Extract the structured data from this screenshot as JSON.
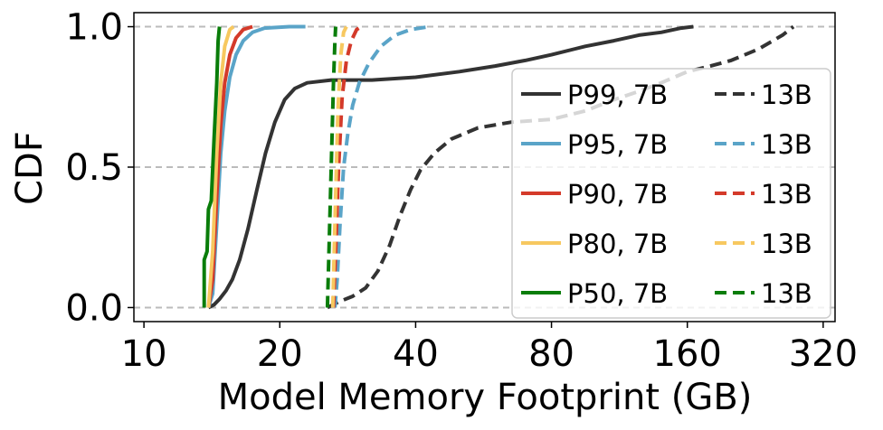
{
  "chart_data": {
    "type": "line",
    "subtype": "cdf",
    "xlabel": "Model Memory Footprint (GB)",
    "ylabel": "CDF",
    "xscale": "log2",
    "xlim": [
      9.5,
      340
    ],
    "ylim": [
      -0.05,
      1.05
    ],
    "xticks": [
      10,
      20,
      40,
      80,
      160,
      320
    ],
    "xtick_labels": [
      "10",
      "20",
      "40",
      "80",
      "160",
      "320"
    ],
    "yticks": [
      0.0,
      0.5,
      1.0
    ],
    "ytick_labels": [
      "0.0",
      "0.5",
      "1.0"
    ],
    "grid": "horizontal dashed at y ticks",
    "legend_position": "lower right",
    "legend_rows": [
      {
        "solid_label": "P99, 7B",
        "dashed_label": "13B",
        "color": "#333333"
      },
      {
        "solid_label": "P95, 7B",
        "dashed_label": "13B",
        "color": "#5aa4c8"
      },
      {
        "solid_label": "P90, 7B",
        "dashed_label": "13B",
        "color": "#d43a2a"
      },
      {
        "solid_label": "P80, 7B",
        "dashed_label": "13B",
        "color": "#f7c860"
      },
      {
        "solid_label": "P50, 7B",
        "dashed_label": "13B",
        "color": "#0a7d0a"
      }
    ],
    "series": [
      {
        "percentile": "P99",
        "model": "7B",
        "color": "#333333",
        "style": "solid",
        "points": [
          [
            13.9,
            0.0
          ],
          [
            14.3,
            0.01
          ],
          [
            14.7,
            0.03
          ],
          [
            15.2,
            0.06
          ],
          [
            15.7,
            0.1
          ],
          [
            16.3,
            0.17
          ],
          [
            17,
            0.28
          ],
          [
            17.8,
            0.42
          ],
          [
            18.6,
            0.55
          ],
          [
            19.5,
            0.66
          ],
          [
            20.5,
            0.74
          ],
          [
            21.6,
            0.78
          ],
          [
            23,
            0.8
          ],
          [
            26,
            0.81
          ],
          [
            32,
            0.81
          ],
          [
            40,
            0.82
          ],
          [
            50,
            0.84
          ],
          [
            60,
            0.86
          ],
          [
            70,
            0.88
          ],
          [
            80,
            0.9
          ],
          [
            95,
            0.93
          ],
          [
            110,
            0.95
          ],
          [
            125,
            0.97
          ],
          [
            140,
            0.98
          ],
          [
            155,
            0.995
          ],
          [
            165,
            1.0
          ]
        ]
      },
      {
        "percentile": "P99",
        "model": "13B",
        "color": "#333333",
        "style": "dashed",
        "points": [
          [
            25.5,
            0.0
          ],
          [
            27,
            0.02
          ],
          [
            29,
            0.04
          ],
          [
            31,
            0.07
          ],
          [
            33,
            0.13
          ],
          [
            35,
            0.22
          ],
          [
            37,
            0.33
          ],
          [
            39,
            0.42
          ],
          [
            41,
            0.49
          ],
          [
            44,
            0.55
          ],
          [
            48,
            0.6
          ],
          [
            55,
            0.64
          ],
          [
            65,
            0.66
          ],
          [
            80,
            0.67
          ],
          [
            95,
            0.7
          ],
          [
            110,
            0.74
          ],
          [
            125,
            0.77
          ],
          [
            140,
            0.8
          ],
          [
            160,
            0.84
          ],
          [
            180,
            0.86
          ],
          [
            200,
            0.88
          ],
          [
            230,
            0.92
          ],
          [
            260,
            0.97
          ],
          [
            275,
            1.0
          ]
        ]
      },
      {
        "percentile": "P95",
        "model": "7B",
        "color": "#5aa4c8",
        "style": "solid",
        "points": [
          [
            13.9,
            0.0
          ],
          [
            14.2,
            0.05
          ],
          [
            14.5,
            0.3
          ],
          [
            14.8,
            0.55
          ],
          [
            15.1,
            0.7
          ],
          [
            15.5,
            0.82
          ],
          [
            16,
            0.9
          ],
          [
            16.6,
            0.95
          ],
          [
            17.4,
            0.98
          ],
          [
            18.5,
            0.995
          ],
          [
            21,
            1.0
          ],
          [
            22.8,
            1.0
          ]
        ]
      },
      {
        "percentile": "P95",
        "model": "13B",
        "color": "#5aa4c8",
        "style": "dashed",
        "points": [
          [
            26.5,
            0.0
          ],
          [
            26.8,
            0.1
          ],
          [
            27.2,
            0.3
          ],
          [
            27.7,
            0.5
          ],
          [
            28.3,
            0.62
          ],
          [
            29,
            0.72
          ],
          [
            30,
            0.8
          ],
          [
            31.5,
            0.87
          ],
          [
            33.5,
            0.93
          ],
          [
            36,
            0.97
          ],
          [
            39,
            0.99
          ],
          [
            43,
            1.0
          ]
        ]
      },
      {
        "percentile": "P90",
        "model": "7B",
        "color": "#d43a2a",
        "style": "solid",
        "points": [
          [
            13.9,
            0.0
          ],
          [
            14.2,
            0.1
          ],
          [
            14.5,
            0.4
          ],
          [
            14.8,
            0.65
          ],
          [
            15.1,
            0.8
          ],
          [
            15.5,
            0.9
          ],
          [
            16,
            0.96
          ],
          [
            16.6,
            0.99
          ],
          [
            17.4,
            1.0
          ]
        ]
      },
      {
        "percentile": "P90",
        "model": "13B",
        "color": "#d43a2a",
        "style": "dashed",
        "points": [
          [
            26.3,
            0.0
          ],
          [
            26.6,
            0.2
          ],
          [
            27,
            0.5
          ],
          [
            27.5,
            0.75
          ],
          [
            28.1,
            0.88
          ],
          [
            28.8,
            0.95
          ],
          [
            29.6,
            0.99
          ],
          [
            30.3,
            1.0
          ]
        ]
      },
      {
        "percentile": "P80",
        "model": "7B",
        "color": "#f7c860",
        "style": "solid",
        "points": [
          [
            13.9,
            0.0
          ],
          [
            14.2,
            0.2
          ],
          [
            14.5,
            0.55
          ],
          [
            14.8,
            0.8
          ],
          [
            15.1,
            0.93
          ],
          [
            15.5,
            0.99
          ],
          [
            15.8,
            1.0
          ]
        ]
      },
      {
        "percentile": "P80",
        "model": "13B",
        "color": "#f7c860",
        "style": "dashed",
        "points": [
          [
            26.2,
            0.0
          ],
          [
            26.5,
            0.3
          ],
          [
            26.9,
            0.7
          ],
          [
            27.3,
            0.9
          ],
          [
            27.7,
            0.98
          ],
          [
            28.1,
            1.0
          ]
        ]
      },
      {
        "percentile": "P50",
        "model": "7B",
        "color": "#0a7d0a",
        "style": "solid",
        "points": [
          [
            13.6,
            0.0
          ],
          [
            13.6,
            0.17
          ],
          [
            13.8,
            0.2
          ],
          [
            13.9,
            0.35
          ],
          [
            14.1,
            0.38
          ],
          [
            14.3,
            0.6
          ],
          [
            14.5,
            0.8
          ],
          [
            14.6,
            0.95
          ],
          [
            14.7,
            1.0
          ]
        ]
      },
      {
        "percentile": "P50",
        "model": "13B",
        "color": "#0a7d0a",
        "style": "dashed",
        "points": [
          [
            25.5,
            0.0
          ],
          [
            25.7,
            0.2
          ],
          [
            26,
            0.5
          ],
          [
            26.3,
            0.8
          ],
          [
            26.5,
            0.95
          ],
          [
            26.6,
            1.0
          ]
        ]
      }
    ]
  }
}
